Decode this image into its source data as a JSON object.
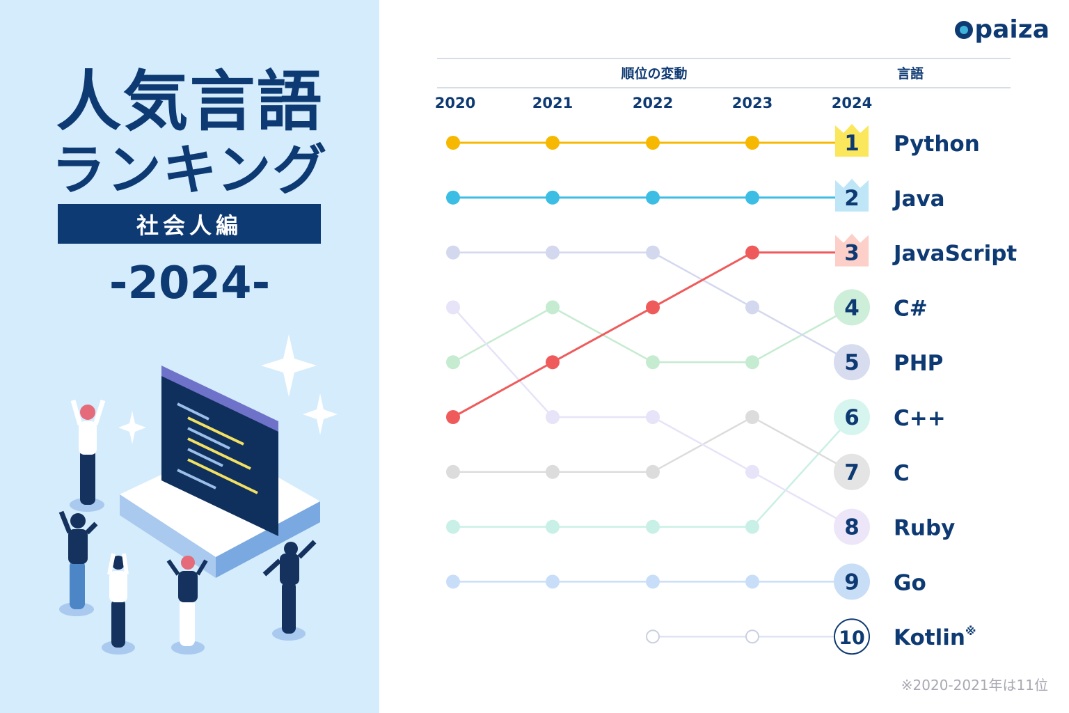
{
  "title_line1": "人気言語",
  "title_line2": "ランキング",
  "subtitle": "社会人編",
  "year_label": "-2024-",
  "logo_text": "paiza",
  "footnote": "※2020-2021年は11位",
  "chart_data": {
    "type": "line",
    "header_change": "順位の変動",
    "header_language": "言語",
    "x": [
      "2020",
      "2021",
      "2022",
      "2023",
      "2024"
    ],
    "series": [
      {
        "name": "Python",
        "color": "#f6b800",
        "ranks": [
          1,
          1,
          1,
          1,
          1
        ]
      },
      {
        "name": "Java",
        "color": "#3bbde4",
        "ranks": [
          2,
          2,
          2,
          2,
          2
        ]
      },
      {
        "name": "JavaScript",
        "color": "#ef5b5b",
        "ranks": [
          6,
          5,
          4,
          3,
          3
        ]
      },
      {
        "name": "C#",
        "color": "#c5ebd0",
        "ranks": [
          5,
          4,
          5,
          5,
          4
        ]
      },
      {
        "name": "PHP",
        "color": "#d3d8ee",
        "ranks": [
          3,
          3,
          3,
          4,
          5
        ]
      },
      {
        "name": "C++",
        "color": "#c9f0e6",
        "ranks": [
          8,
          8,
          8,
          8,
          6
        ]
      },
      {
        "name": "C",
        "color": "#dcdcdc",
        "ranks": [
          7,
          7,
          7,
          6,
          7
        ]
      },
      {
        "name": "Ruby",
        "color": "#e7e3f8",
        "ranks": [
          4,
          6,
          6,
          7,
          8
        ]
      },
      {
        "name": "Go",
        "color": "#c8def8",
        "ranks": [
          9,
          9,
          9,
          9,
          9
        ]
      },
      {
        "name": "Kotlin",
        "color": "#dde3f3",
        "ranks": [
          null,
          null,
          10,
          10,
          10
        ],
        "note": "※",
        "hollow": true
      }
    ],
    "rank_labels": [
      "1",
      "2",
      "3",
      "4",
      "5",
      "6",
      "7",
      "8",
      "9",
      "10"
    ],
    "badge_colors": [
      "#fbe75c",
      "#bfe6f6",
      "#fcd0c9",
      "#cdeed8",
      "#d7dcef",
      "#d7f5ef",
      "#e4e4e4",
      "#ece6f8",
      "#c8ddf6",
      "#ffffff"
    ],
    "ylim": [
      1,
      10
    ]
  }
}
